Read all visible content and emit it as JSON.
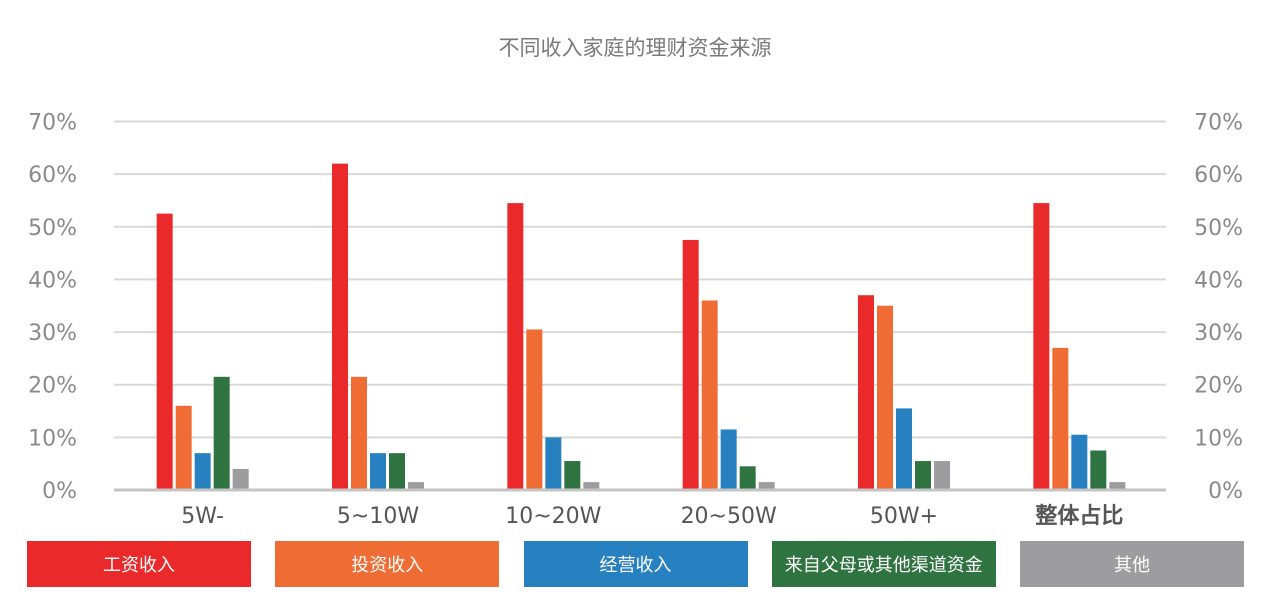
{
  "chart_data": {
    "type": "bar",
    "title": "不同收入家庭的理财资金来源",
    "categories": [
      "5W-",
      "5~10W",
      "10~20W",
      "20~50W",
      "50W+",
      "整体占比"
    ],
    "series": [
      {
        "name": "工资收入",
        "color": "#ea2a2a",
        "values": [
          52.5,
          62,
          54.5,
          47.5,
          37,
          54.5
        ]
      },
      {
        "name": "投资收入",
        "color": "#ef6c34",
        "values": [
          16,
          21.5,
          30.5,
          36,
          35,
          27
        ]
      },
      {
        "name": "经营收入",
        "color": "#2780bf",
        "values": [
          7,
          7,
          10,
          11.5,
          15.5,
          10.5
        ]
      },
      {
        "name": "来自父母或其他渠道资金",
        "color": "#2f7340",
        "values": [
          21.5,
          7,
          5.5,
          4.5,
          5.5,
          7.5
        ]
      },
      {
        "name": "其他",
        "color": "#9d9d9f",
        "values": [
          4,
          1.5,
          1.5,
          1.5,
          5.5,
          1.5
        ]
      }
    ],
    "ylim": [
      0,
      70
    ],
    "ytick_values": [
      0,
      10,
      20,
      30,
      40,
      50,
      60,
      70
    ],
    "ytick_labels": [
      "0%",
      "10%",
      "20%",
      "30%",
      "40%",
      "50%",
      "60%",
      "70%"
    ],
    "right_axis_duplicate": true,
    "grid": true,
    "legend_placement": "bottom",
    "xlabel": "",
    "ylabel": ""
  }
}
